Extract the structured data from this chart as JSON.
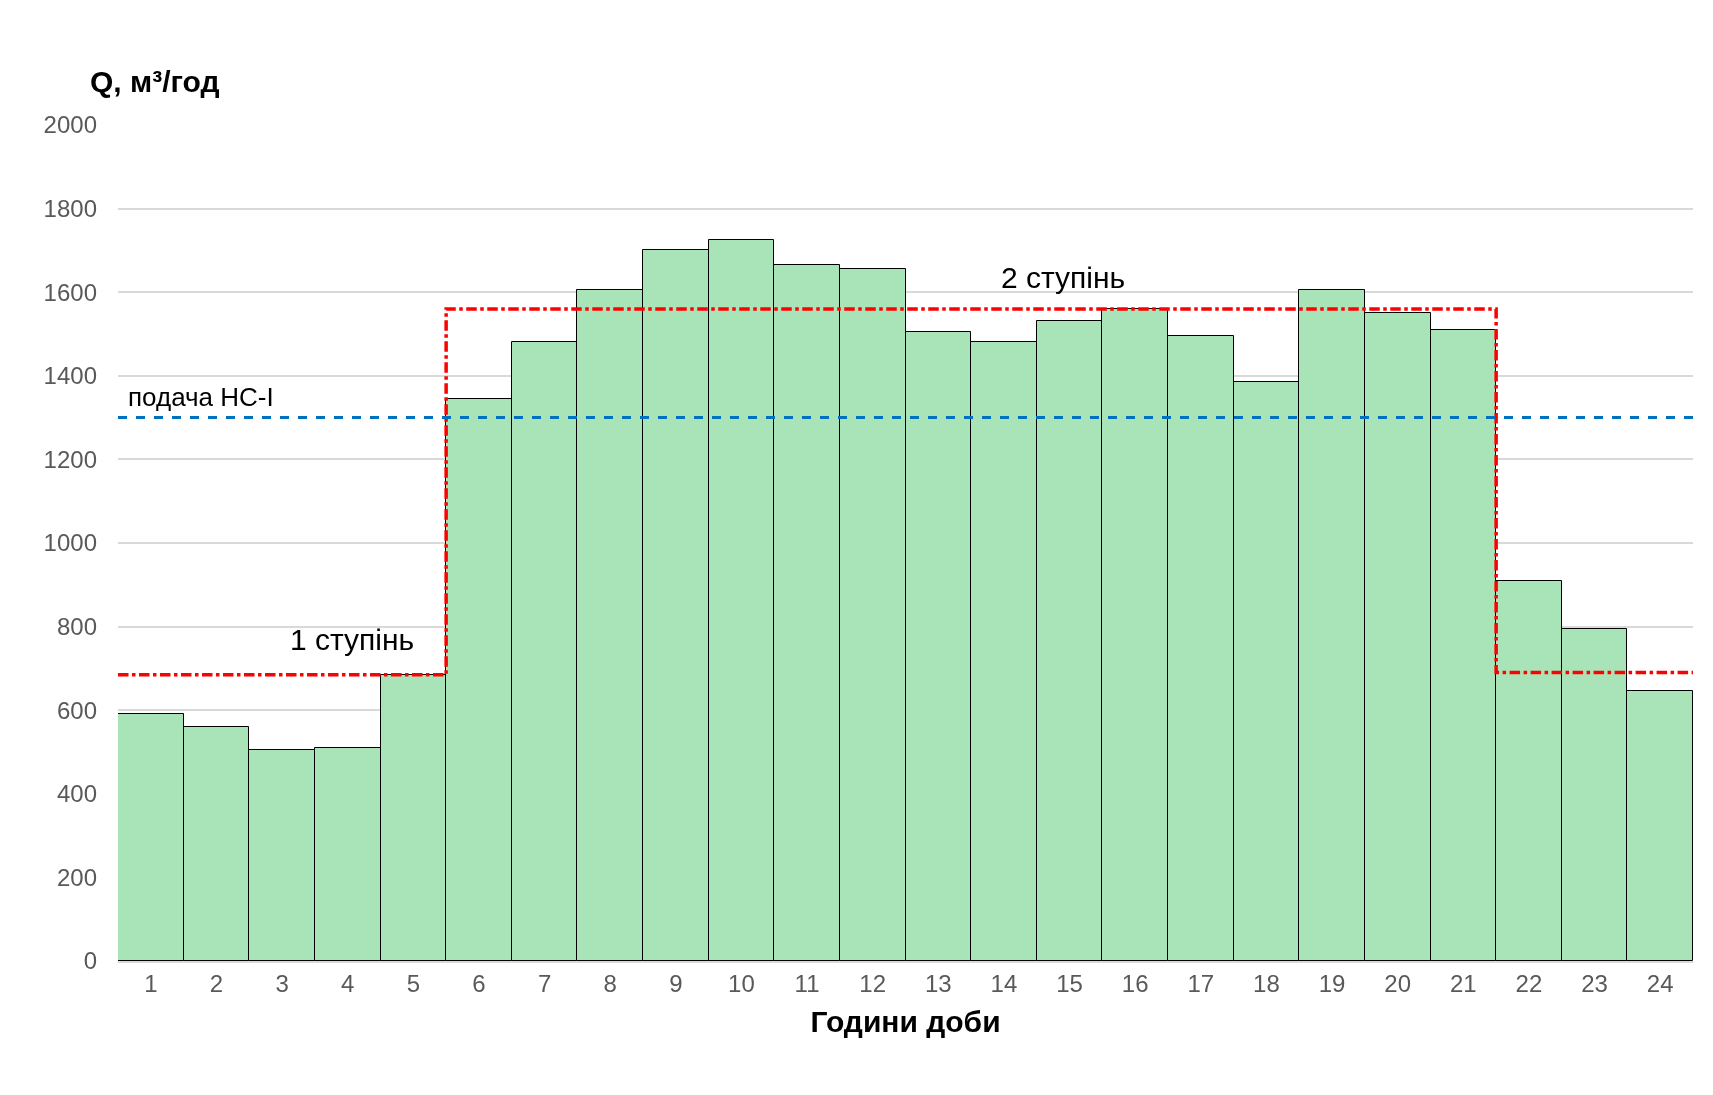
{
  "chart_data": {
    "type": "bar",
    "xlabel": "Години доби",
    "ylabel": "Q, м³/год",
    "x": [
      1,
      2,
      3,
      4,
      5,
      6,
      7,
      8,
      9,
      10,
      11,
      12,
      13,
      14,
      15,
      16,
      17,
      18,
      19,
      20,
      21,
      22,
      23,
      24
    ],
    "xlim": [
      0.5,
      24.5
    ],
    "xticks": [
      1,
      2,
      3,
      4,
      5,
      6,
      7,
      8,
      9,
      10,
      11,
      12,
      13,
      14,
      15,
      16,
      17,
      18,
      19,
      20,
      21,
      22,
      23,
      24
    ],
    "ylim": [
      0,
      2000
    ],
    "yticks": [
      0,
      200,
      400,
      600,
      800,
      1000,
      1200,
      1400,
      1600,
      1800,
      2000
    ],
    "grid": "y",
    "legend": false,
    "series": [
      {
        "color": "#a8e4b8",
        "values": [
          590,
          560,
          505,
          510,
          685,
          1345,
          1480,
          1605,
          1700,
          1725,
          1665,
          1655,
          1505,
          1480,
          1530,
          1560,
          1495,
          1385,
          1605,
          1550,
          1510,
          910,
          795,
          645
        ]
      },
      {
        "type": "line",
        "color": "#ff0000",
        "line_style": "dashdot",
        "x": [
          0.5,
          5.5,
          5.5,
          21.5,
          21.5,
          24.5
        ],
        "values": [
          685,
          685,
          1560,
          1560,
          690,
          690
        ]
      }
    ],
    "ref_lines": [
      {
        "axis": "y",
        "value": 1300,
        "label": "подача НС-І",
        "color": "#0070c0",
        "line_style": "dashed"
      }
    ],
    "annotations": [
      "1 ступінь",
      "2 ступінь"
    ]
  }
}
